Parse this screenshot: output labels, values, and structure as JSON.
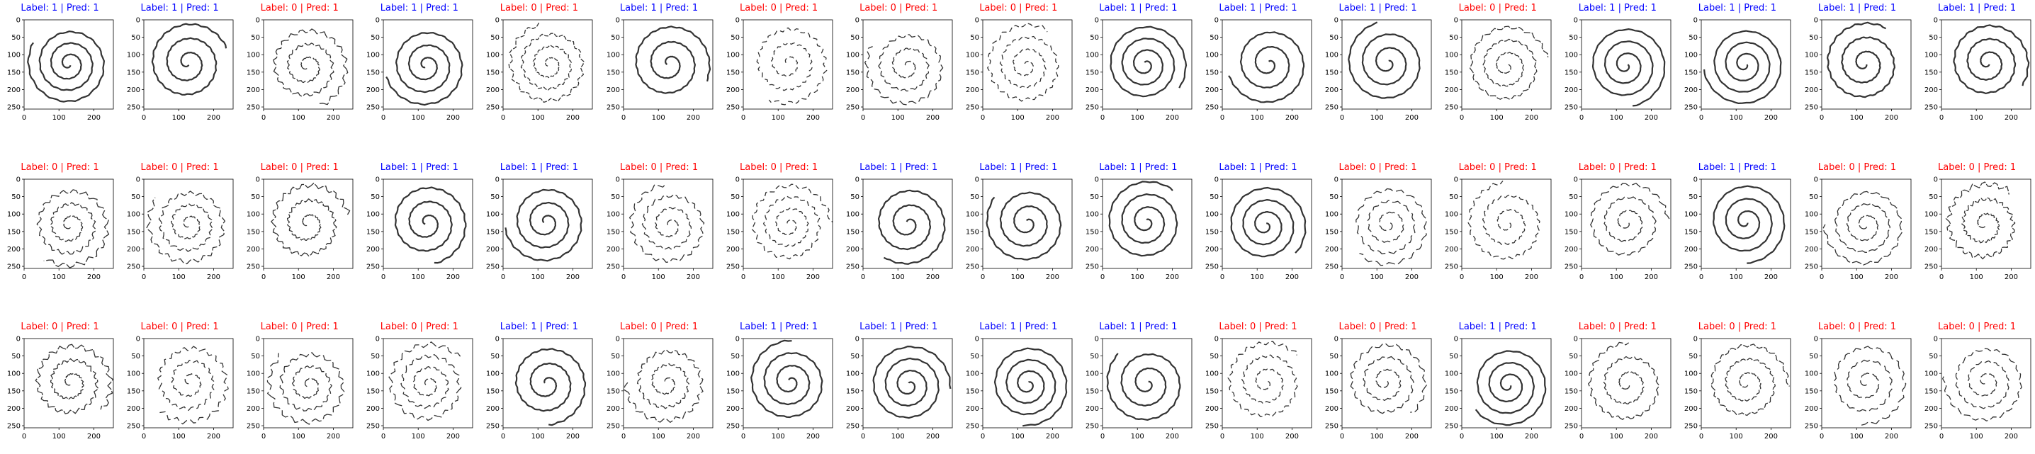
{
  "figure": {
    "grid": {
      "rows": 3,
      "columns": 17
    },
    "colors": {
      "correct": "#0000ff",
      "incorrect": "#ff0000",
      "ink": "#333333",
      "frame": "#000000"
    },
    "axes": {
      "xticks": [
        "0",
        "100",
        "200"
      ],
      "yticks": [
        "0",
        "50",
        "100",
        "150",
        "200",
        "250"
      ],
      "xlim": [
        0,
        256
      ],
      "ylim": [
        256,
        0
      ]
    },
    "panels": [
      {
        "title": "Label: 1 | Pred: 1",
        "label": 1,
        "pred": 1
      },
      {
        "title": "Label: 1 | Pred: 1",
        "label": 1,
        "pred": 1
      },
      {
        "title": "Label: 0 | Pred: 1",
        "label": 0,
        "pred": 1
      },
      {
        "title": "Label: 1 | Pred: 1",
        "label": 1,
        "pred": 1
      },
      {
        "title": "Label: 0 | Pred: 1",
        "label": 0,
        "pred": 1
      },
      {
        "title": "Label: 1 | Pred: 1",
        "label": 1,
        "pred": 1
      },
      {
        "title": "Label: 0 | Pred: 1",
        "label": 0,
        "pred": 1
      },
      {
        "title": "Label: 0 | Pred: 1",
        "label": 0,
        "pred": 1
      },
      {
        "title": "Label: 0 | Pred: 1",
        "label": 0,
        "pred": 1
      },
      {
        "title": "Label: 1 | Pred: 1",
        "label": 1,
        "pred": 1
      },
      {
        "title": "Label: 1 | Pred: 1",
        "label": 1,
        "pred": 1
      },
      {
        "title": "Label: 1 | Pred: 1",
        "label": 1,
        "pred": 1
      },
      {
        "title": "Label: 0 | Pred: 1",
        "label": 0,
        "pred": 1
      },
      {
        "title": "Label: 1 | Pred: 1",
        "label": 1,
        "pred": 1
      },
      {
        "title": "Label: 1 | Pred: 1",
        "label": 1,
        "pred": 1
      },
      {
        "title": "Label: 1 | Pred: 1",
        "label": 1,
        "pred": 1
      },
      {
        "title": "Label: 1 | Pred: 1",
        "label": 1,
        "pred": 1
      },
      {
        "title": "Label: 0 | Pred: 1",
        "label": 0,
        "pred": 1
      },
      {
        "title": "Label: 0 | Pred: 1",
        "label": 0,
        "pred": 1
      },
      {
        "title": "Label: 0 | Pred: 1",
        "label": 0,
        "pred": 1
      },
      {
        "title": "Label: 1 | Pred: 1",
        "label": 1,
        "pred": 1
      },
      {
        "title": "Label: 1 | Pred: 1",
        "label": 1,
        "pred": 1
      },
      {
        "title": "Label: 0 | Pred: 1",
        "label": 0,
        "pred": 1
      },
      {
        "title": "Label: 0 | Pred: 1",
        "label": 0,
        "pred": 1
      },
      {
        "title": "Label: 1 | Pred: 1",
        "label": 1,
        "pred": 1
      },
      {
        "title": "Label: 1 | Pred: 1",
        "label": 1,
        "pred": 1
      },
      {
        "title": "Label: 1 | Pred: 1",
        "label": 1,
        "pred": 1
      },
      {
        "title": "Label: 1 | Pred: 1",
        "label": 1,
        "pred": 1
      },
      {
        "title": "Label: 0 | Pred: 1",
        "label": 0,
        "pred": 1
      },
      {
        "title": "Label: 0 | Pred: 1",
        "label": 0,
        "pred": 1
      },
      {
        "title": "Label: 0 | Pred: 1",
        "label": 0,
        "pred": 1
      },
      {
        "title": "Label: 1 | Pred: 1",
        "label": 1,
        "pred": 1
      },
      {
        "title": "Label: 0 | Pred: 1",
        "label": 0,
        "pred": 1
      },
      {
        "title": "Label: 0 | Pred: 1",
        "label": 0,
        "pred": 1
      },
      {
        "title": "Label: 0 | Pred: 1",
        "label": 0,
        "pred": 1
      },
      {
        "title": "Label: 0 | Pred: 1",
        "label": 0,
        "pred": 1
      },
      {
        "title": "Label: 0 | Pred: 1",
        "label": 0,
        "pred": 1
      },
      {
        "title": "Label: 0 | Pred: 1",
        "label": 0,
        "pred": 1
      },
      {
        "title": "Label: 1 | Pred: 1",
        "label": 1,
        "pred": 1
      },
      {
        "title": "Label: 0 | Pred: 1",
        "label": 0,
        "pred": 1
      },
      {
        "title": "Label: 1 | Pred: 1",
        "label": 1,
        "pred": 1
      },
      {
        "title": "Label: 1 | Pred: 1",
        "label": 1,
        "pred": 1
      },
      {
        "title": "Label: 1 | Pred: 1",
        "label": 1,
        "pred": 1
      },
      {
        "title": "Label: 1 | Pred: 1",
        "label": 1,
        "pred": 1
      },
      {
        "title": "Label: 0 | Pred: 1",
        "label": 0,
        "pred": 1
      },
      {
        "title": "Label: 0 | Pred: 1",
        "label": 0,
        "pred": 1
      },
      {
        "title": "Label: 1 | Pred: 1",
        "label": 1,
        "pred": 1
      },
      {
        "title": "Label: 0 | Pred: 1",
        "label": 0,
        "pred": 1
      },
      {
        "title": "Label: 0 | Pred: 1",
        "label": 0,
        "pred": 1
      },
      {
        "title": "Label: 0 | Pred: 1",
        "label": 0,
        "pred": 1
      },
      {
        "title": "Label: 0 | Pred: 1",
        "label": 0,
        "pred": 1
      }
    ]
  }
}
